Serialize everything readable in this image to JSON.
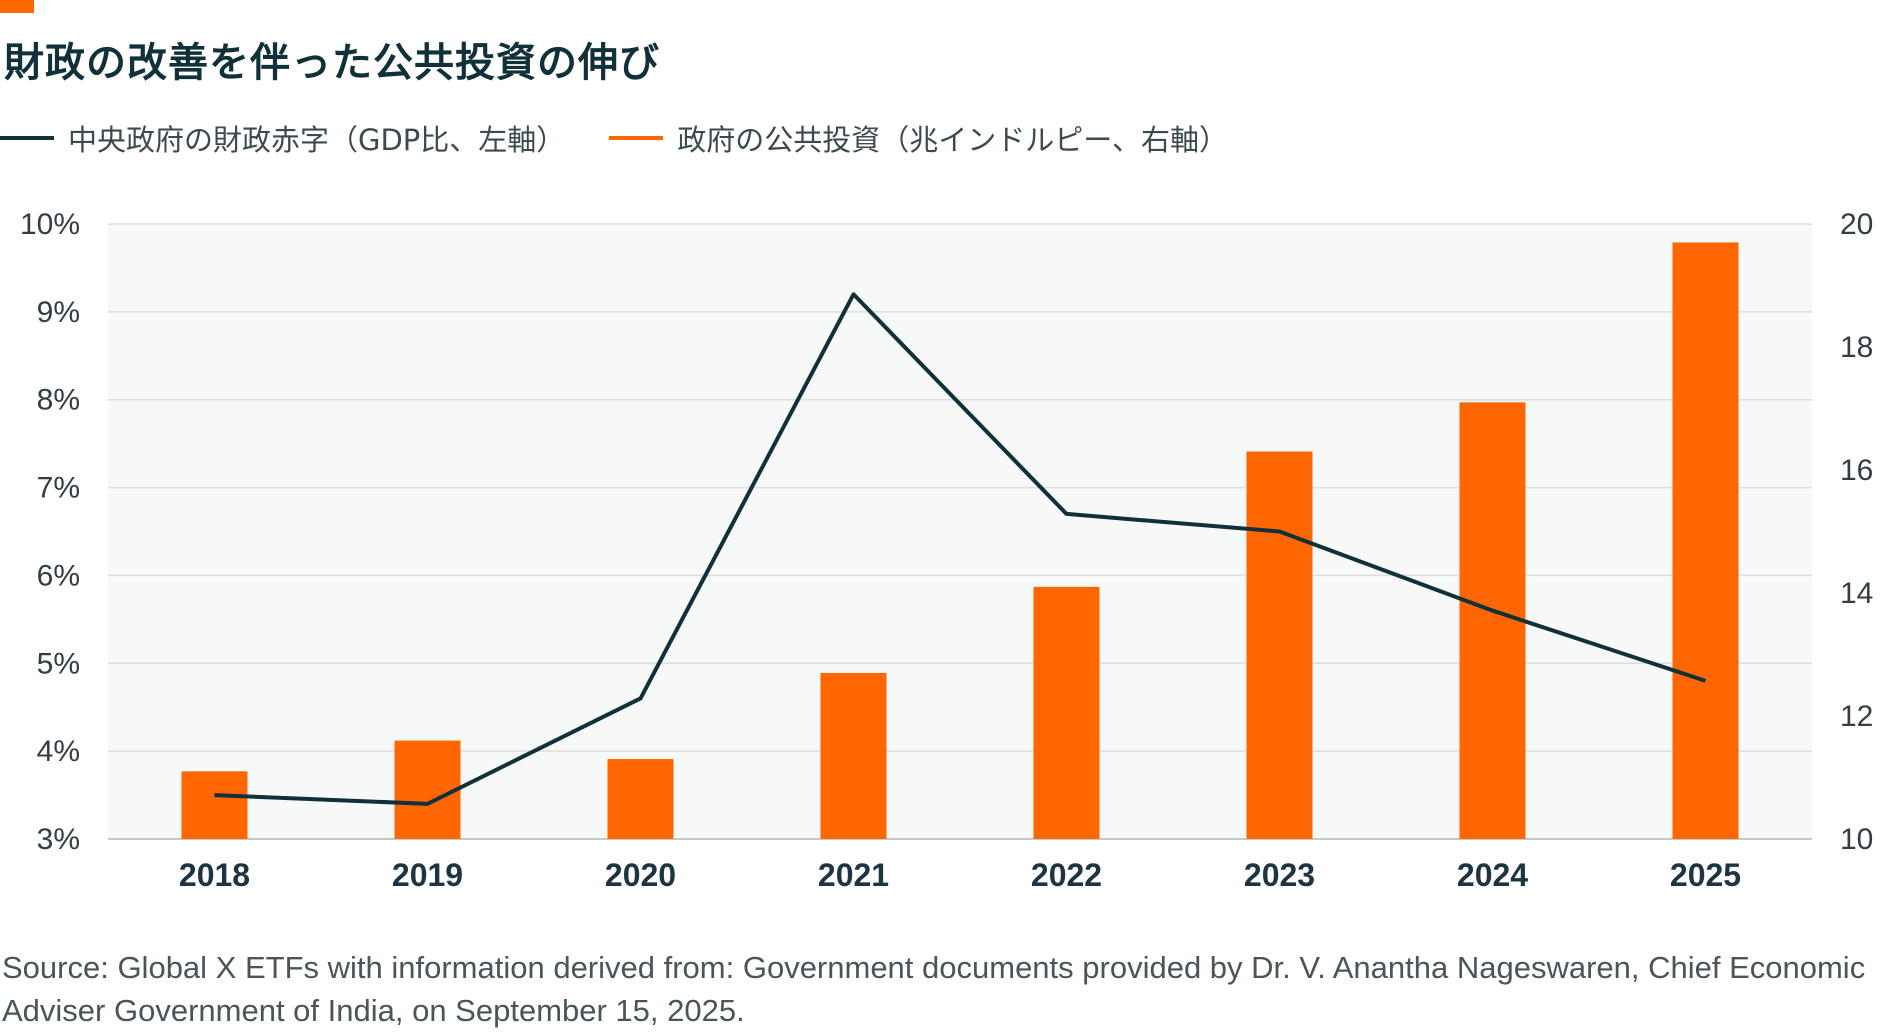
{
  "title": "財政の改善を伴った公共投資の伸び",
  "legend": {
    "deficit": "中央政府の財政赤字（GDP比、左軸）",
    "investment": "政府の公共投資（兆インドルピー、右軸）"
  },
  "source": "Source: Global X ETFs with information derived from: Government documents provided by Dr. V. Anantha Nageswaren, Chief Economic Adviser Government of India, on September 15, 2025.",
  "colors": {
    "accent": "#ff6600",
    "line": "#10303a",
    "plot_bg": "#f7f8f8",
    "grid": "#dedede"
  },
  "chart_data": {
    "type": "bar",
    "categories": [
      "2018",
      "2019",
      "2020",
      "2021",
      "2022",
      "2023",
      "2024",
      "2025"
    ],
    "series": [
      {
        "name": "政府の公共投資（兆インドルピー、右軸）",
        "type": "bar",
        "axis": "right",
        "values": [
          11.1,
          11.6,
          11.3,
          12.7,
          14.1,
          16.3,
          17.1,
          19.7
        ]
      },
      {
        "name": "中央政府の財政赤字（GDP比、左軸）",
        "type": "line",
        "axis": "left",
        "values": [
          3.5,
          3.4,
          4.6,
          9.2,
          6.7,
          6.5,
          5.6,
          4.8
        ]
      }
    ],
    "y_left": {
      "ylim": [
        3,
        10
      ],
      "ticks": [
        "3%",
        "4%",
        "5%",
        "6%",
        "7%",
        "8%",
        "9%",
        "10%"
      ]
    },
    "y_right": {
      "ylim": [
        10,
        20
      ],
      "ticks": [
        "10",
        "12",
        "14",
        "16",
        "18",
        "20"
      ]
    },
    "grid": true,
    "legend_position": "top-left"
  }
}
